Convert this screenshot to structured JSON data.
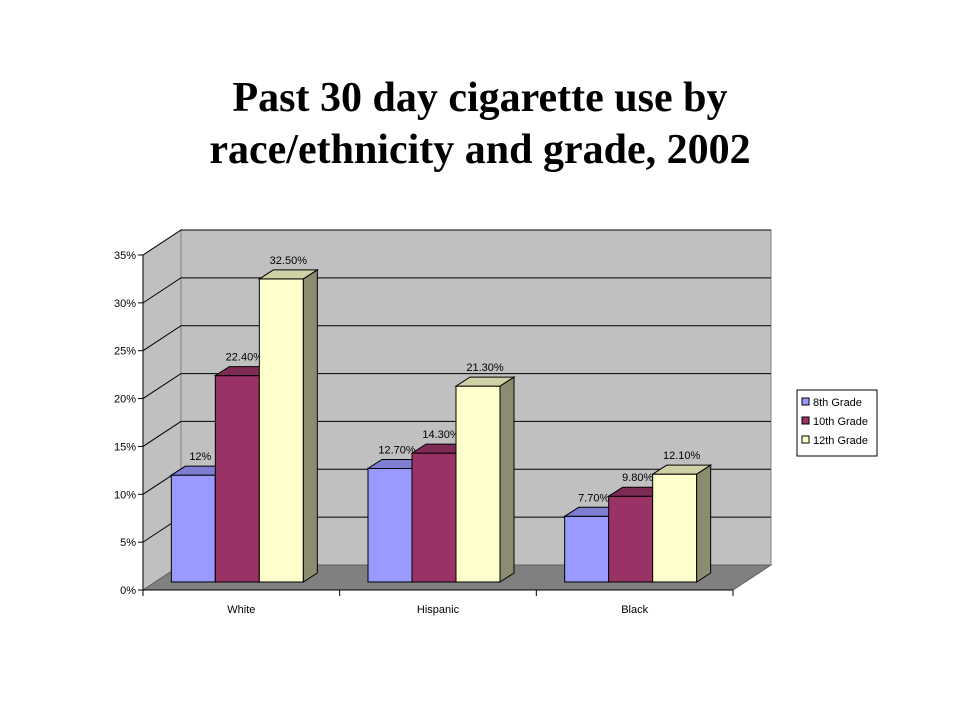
{
  "title": {
    "line1": "Past 30 day cigarette use by",
    "line2": "race/ethnicity and grade, 2002"
  },
  "chart_data": {
    "type": "bar",
    "title": "Past 30 day cigarette use by race/ethnicity and grade, 2002",
    "categories": [
      "White",
      "Hispanic",
      "Black"
    ],
    "series": [
      {
        "name": "8th Grade",
        "values": [
          12,
          12.7,
          7.7
        ],
        "labels": [
          "12%",
          "12.70%",
          "7.70%"
        ],
        "color": "#9999FF"
      },
      {
        "name": "10th Grade",
        "values": [
          22.4,
          14.3,
          9.8
        ],
        "labels": [
          "22.40%",
          "14.30%",
          "9.80%"
        ],
        "color": "#993366"
      },
      {
        "name": "12th Grade",
        "values": [
          32.5,
          21.3,
          12.1
        ],
        "labels": [
          "32.50%",
          "21.30%",
          "12.10%"
        ],
        "color": "#FFFFCC"
      }
    ],
    "ylim": [
      0,
      35
    ],
    "yticks": [
      "0%",
      "5%",
      "10%",
      "15%",
      "20%",
      "25%",
      "30%",
      "35%"
    ],
    "xlabel": "",
    "ylabel": "",
    "grid": true,
    "legend_position": "right",
    "three_d": true,
    "colors": {
      "wall": "#C0C0C0",
      "floor": "#808080",
      "gridline": "#000000"
    }
  }
}
